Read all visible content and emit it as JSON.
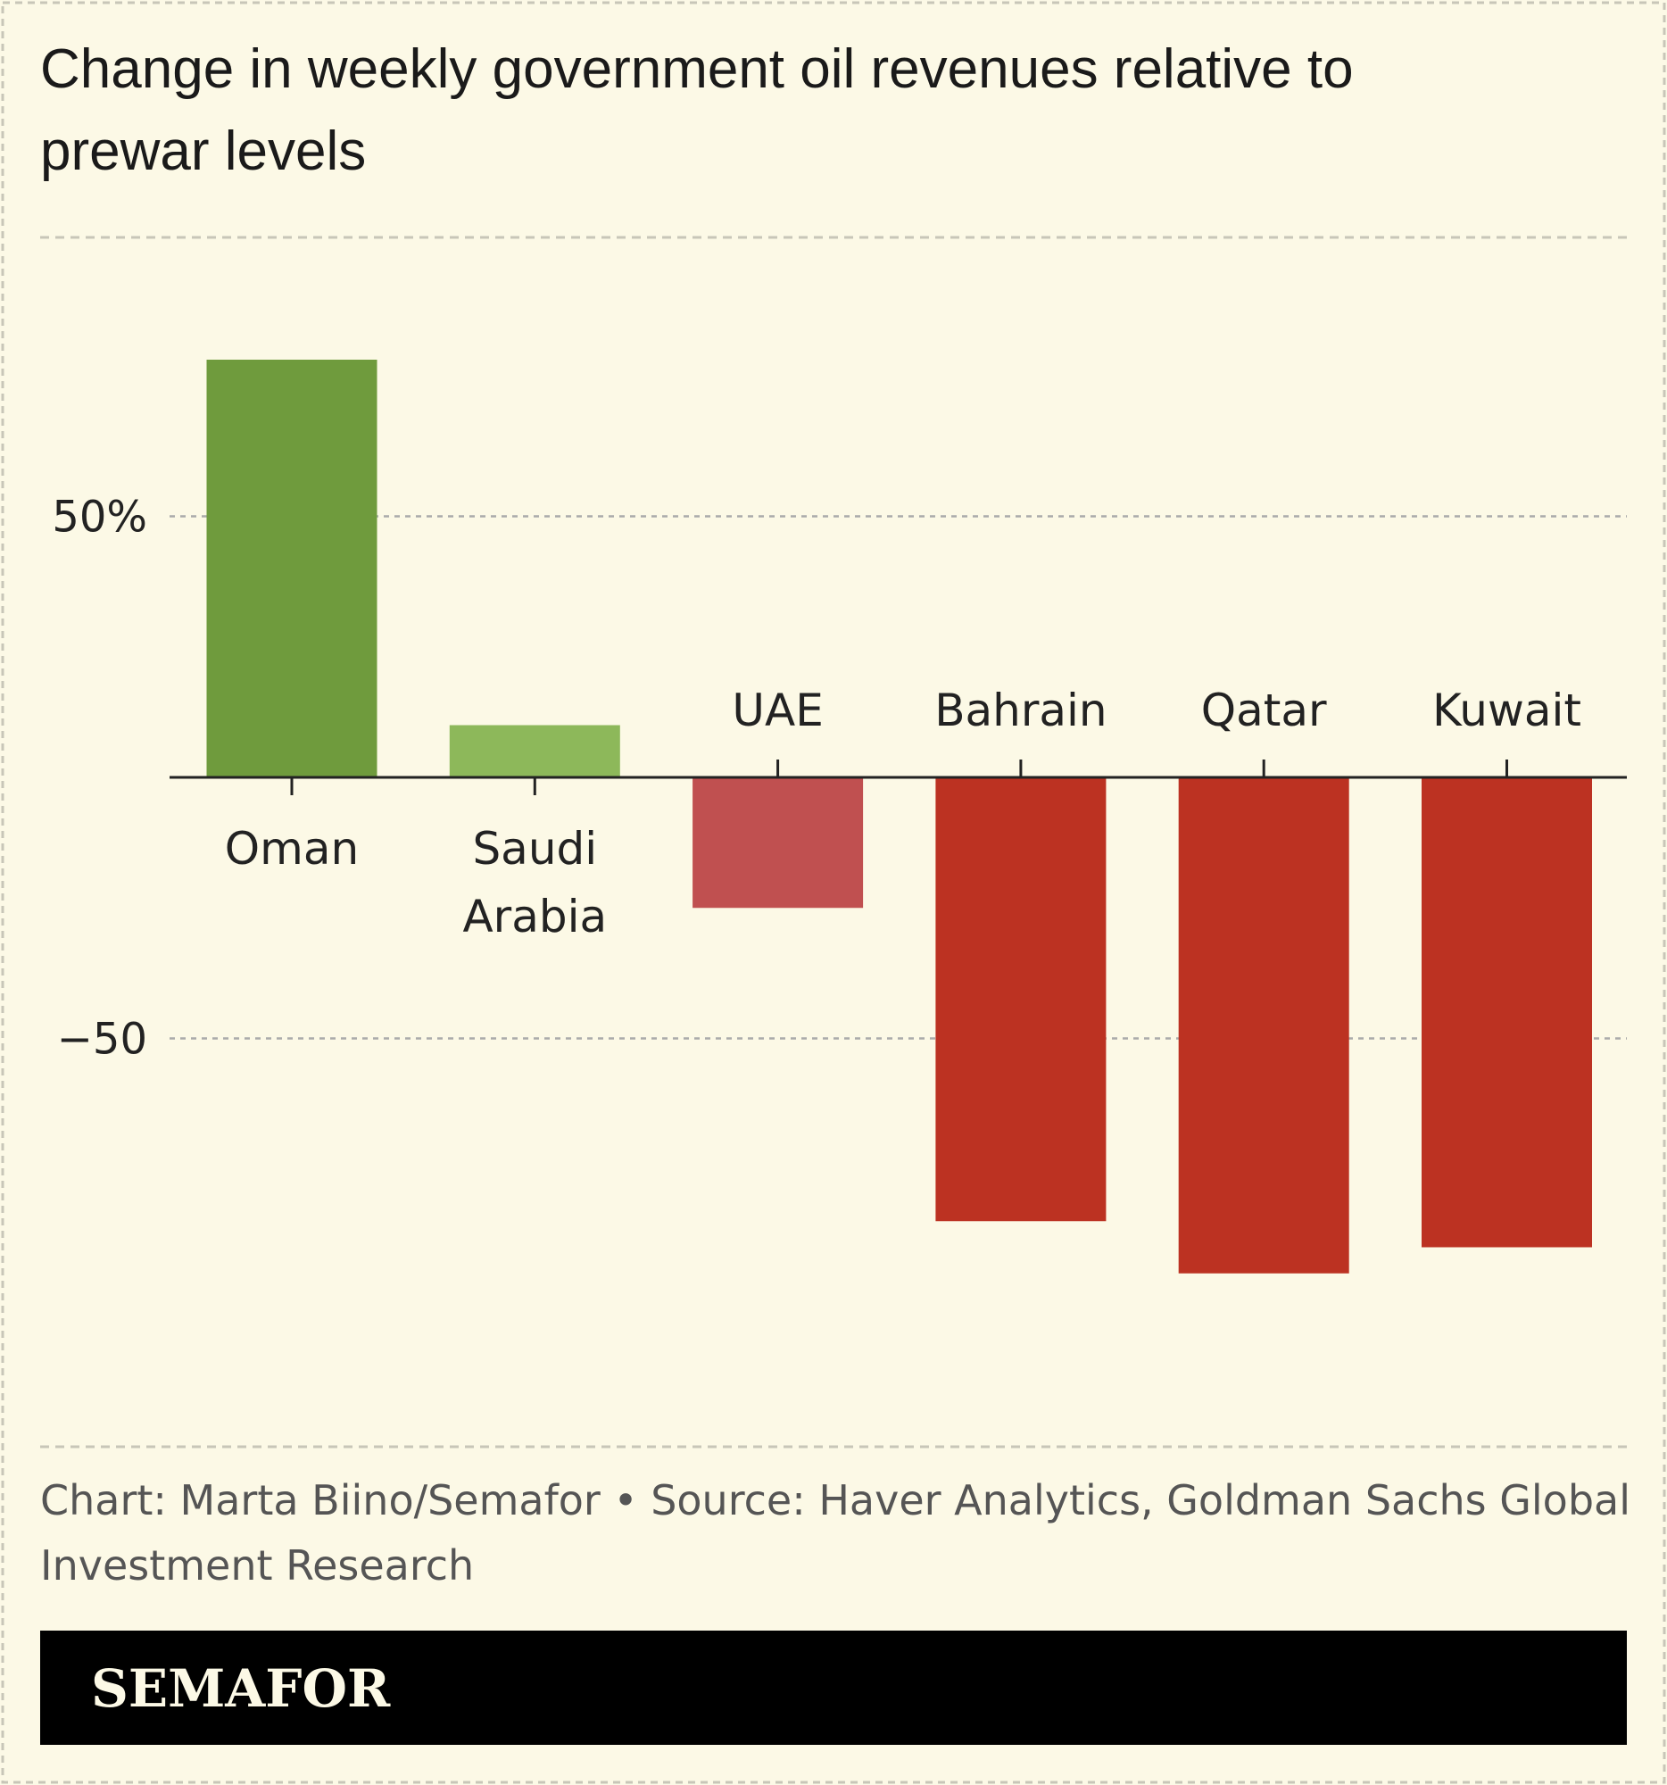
{
  "chart_data": {
    "type": "bar",
    "title": "Change in weekly government oil revenues relative to prewar levels",
    "title_lines": [
      "Change in weekly government oil revenues relative to",
      "prewar levels"
    ],
    "categories": [
      "Oman",
      "Saudi Arabia",
      "UAE",
      "Bahrain",
      "Qatar",
      "Kuwait"
    ],
    "category_lines": [
      [
        "Oman"
      ],
      [
        "Saudi",
        "Arabia"
      ],
      [
        "UAE"
      ],
      [
        "Bahrain"
      ],
      [
        "Qatar"
      ],
      [
        "Kuwait"
      ]
    ],
    "values": [
      80,
      10,
      -25,
      -85,
      -95,
      -90
    ],
    "colors": [
      "#6f9b3d",
      "#8db85a",
      "#c05050",
      "#bc3222",
      "#bc3222",
      "#bc3222"
    ],
    "unit": "%",
    "yticks": [
      50,
      -50
    ],
    "ytick_labels": [
      "50%",
      "−50"
    ],
    "ylim": [
      -100,
      100
    ],
    "grid": true,
    "xlabel": "",
    "ylabel": ""
  },
  "footer": {
    "credit_lines": [
      "Chart: Marta Biino/Semafor • Source: Haver Analytics, Goldman Sachs Global",
      "Investment Research"
    ],
    "logo": "SEMAFOR"
  },
  "colors": {
    "background": "#fcf9e6",
    "logo_bar": "#000000"
  }
}
